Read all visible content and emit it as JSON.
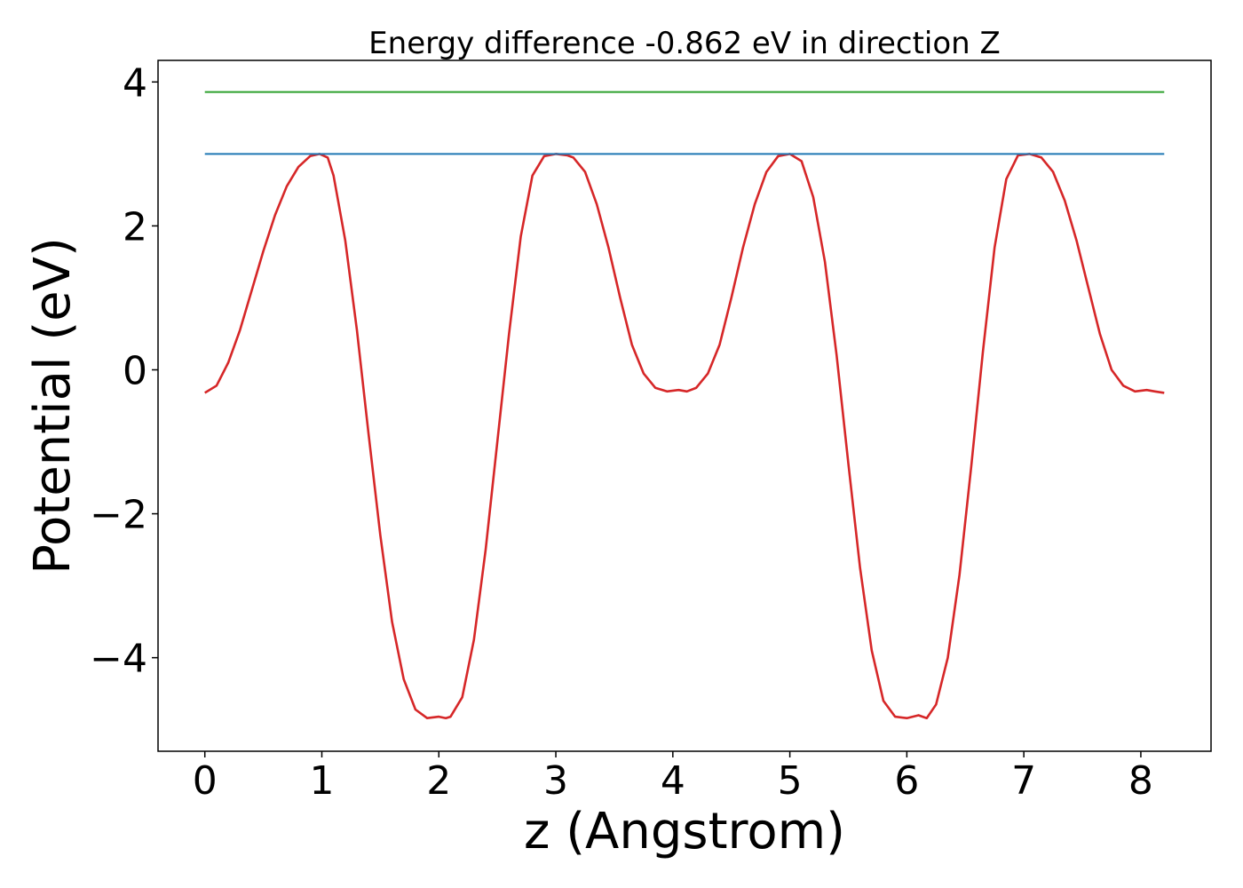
{
  "chart_data": {
    "type": "line",
    "title": "Energy difference -0.862 eV in direction Z",
    "xlabel": "z (Angstrom)",
    "ylabel": "Potential (eV)",
    "xlim": [
      -0.4,
      8.6
    ],
    "ylim": [
      -5.3,
      4.3
    ],
    "xticks": [
      0,
      1,
      2,
      3,
      4,
      5,
      6,
      7,
      8
    ],
    "xtick_labels": [
      "0",
      "1",
      "2",
      "3",
      "4",
      "5",
      "6",
      "7",
      "8"
    ],
    "yticks": [
      -4,
      -2,
      0,
      2,
      4
    ],
    "ytick_labels": [
      "−4",
      "−2",
      "0",
      "2",
      "4"
    ],
    "grid": false,
    "series": [
      {
        "color": "#d62728",
        "x": [
          0,
          0.1,
          0.2,
          0.3,
          0.4,
          0.5,
          0.6,
          0.7,
          0.8,
          0.9,
          0.98,
          1.05,
          1.1,
          1.2,
          1.3,
          1.4,
          1.5,
          1.6,
          1.7,
          1.8,
          1.9,
          2.0,
          2.06,
          2.1,
          2.2,
          2.3,
          2.4,
          2.5,
          2.6,
          2.7,
          2.8,
          2.9,
          3.0,
          3.1,
          3.15,
          3.25,
          3.35,
          3.45,
          3.55,
          3.65,
          3.75,
          3.85,
          3.95,
          4.05,
          4.12,
          4.2,
          4.3,
          4.4,
          4.5,
          4.6,
          4.7,
          4.8,
          4.9,
          5.0,
          5.1,
          5.2,
          5.3,
          5.4,
          5.5,
          5.6,
          5.7,
          5.8,
          5.9,
          6.0,
          6.1,
          6.17,
          6.25,
          6.35,
          6.45,
          6.55,
          6.65,
          6.75,
          6.85,
          6.95,
          7.05,
          7.15,
          7.25,
          7.35,
          7.45,
          7.55,
          7.65,
          7.75,
          7.85,
          7.95,
          8.05,
          8.12,
          8.2
        ],
        "y": [
          -0.32,
          -0.22,
          0.1,
          0.55,
          1.1,
          1.65,
          2.15,
          2.55,
          2.82,
          2.97,
          3.0,
          2.95,
          2.7,
          1.8,
          0.55,
          -0.9,
          -2.3,
          -3.5,
          -4.3,
          -4.72,
          -4.84,
          -4.82,
          -4.84,
          -4.82,
          -4.55,
          -3.75,
          -2.5,
          -1.0,
          0.5,
          1.85,
          2.7,
          2.97,
          3.0,
          2.98,
          2.95,
          2.75,
          2.3,
          1.7,
          1.0,
          0.35,
          -0.05,
          -0.25,
          -0.3,
          -0.28,
          -0.3,
          -0.25,
          -0.05,
          0.35,
          1.0,
          1.7,
          2.3,
          2.75,
          2.97,
          3.0,
          2.9,
          2.4,
          1.5,
          0.2,
          -1.3,
          -2.75,
          -3.9,
          -4.6,
          -4.82,
          -4.84,
          -4.8,
          -4.84,
          -4.65,
          -4.0,
          -2.85,
          -1.35,
          0.25,
          1.7,
          2.65,
          2.98,
          3.0,
          2.95,
          2.75,
          2.35,
          1.8,
          1.15,
          0.5,
          0.0,
          -0.22,
          -0.3,
          -0.28,
          -0.3,
          -0.32
        ]
      },
      {
        "color": "#1f77b4",
        "x": [
          0,
          8.2
        ],
        "y": [
          3.0,
          3.0
        ]
      },
      {
        "color": "#2ca02c",
        "x": [
          0,
          8.2
        ],
        "y": [
          3.86,
          3.86
        ]
      }
    ]
  }
}
